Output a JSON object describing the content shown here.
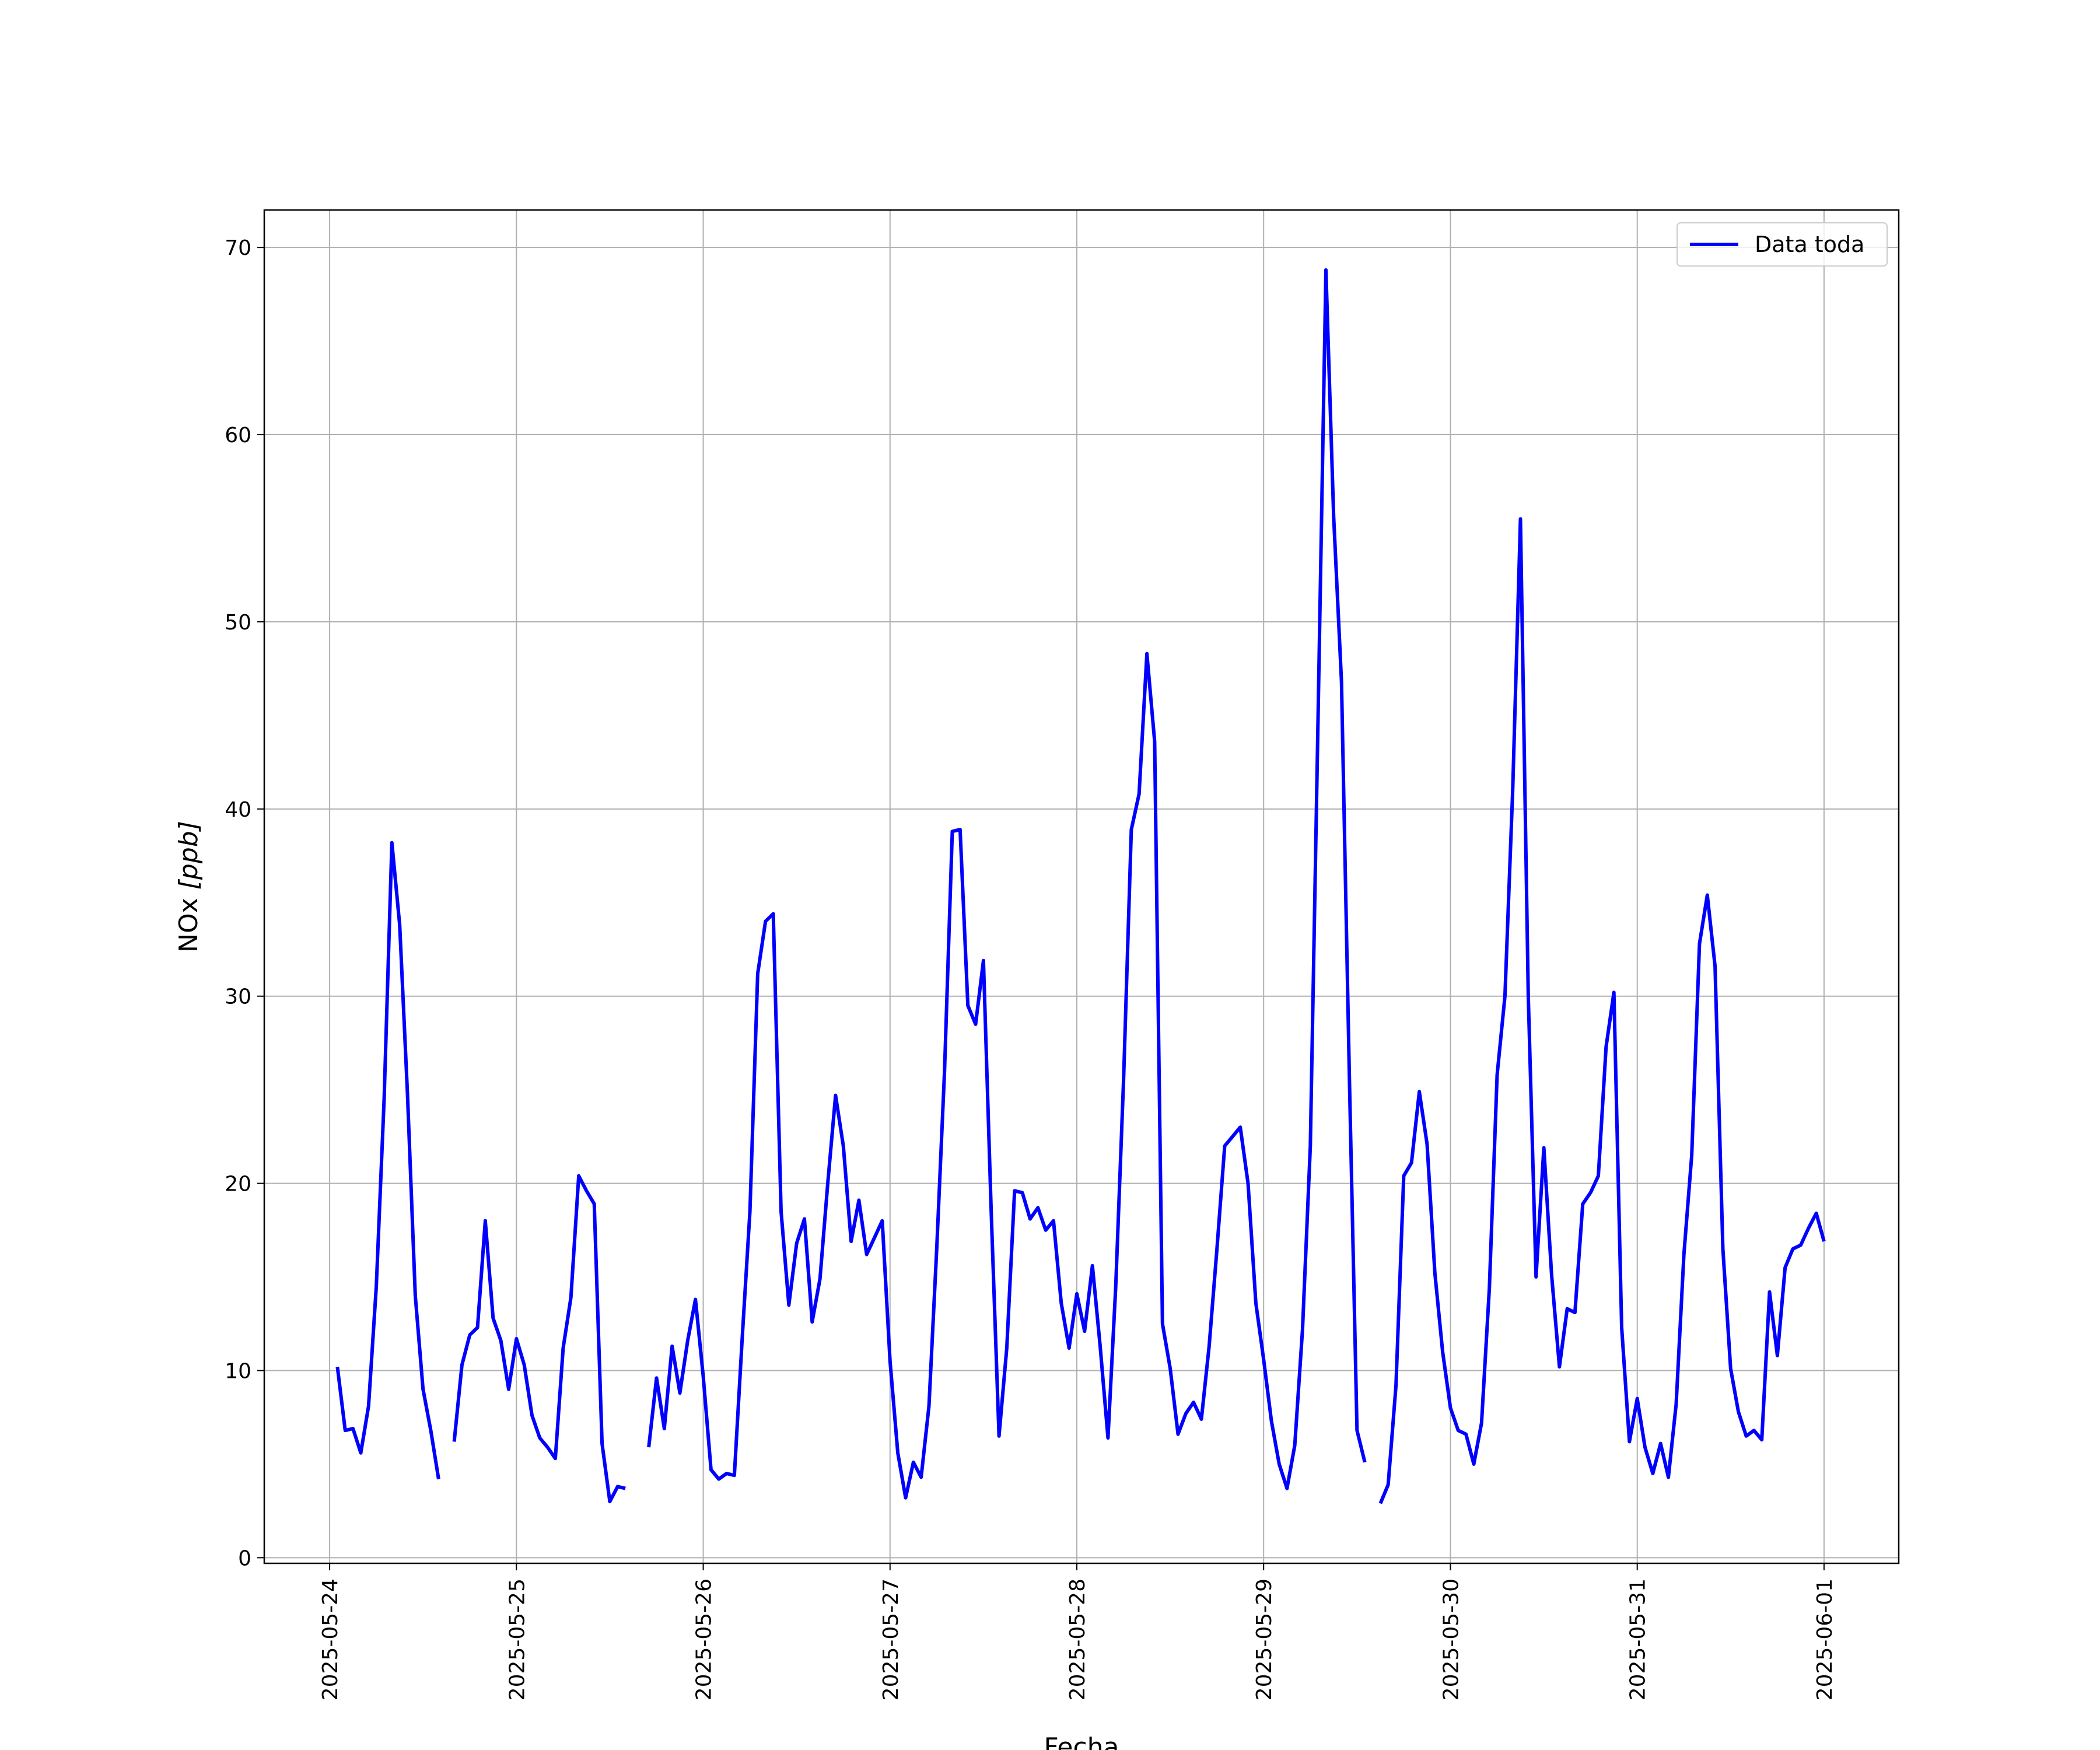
{
  "chart_data": {
    "type": "line",
    "xlabel": "Fecha",
    "ylabel": "NOx [ppb]",
    "ylabel_parts": {
      "base": "NOx ",
      "unit": "[ppb]"
    },
    "ylim": [
      -0.3,
      72
    ],
    "yticks": [
      0,
      10,
      20,
      30,
      40,
      50,
      60,
      70
    ],
    "xlim_days": [
      -0.35,
      8.4
    ],
    "xticks": [
      "2025-05-24",
      "2025-05-25",
      "2025-05-26",
      "2025-05-27",
      "2025-05-28",
      "2025-05-29",
      "2025-05-30",
      "2025-05-31",
      "2025-06-01"
    ],
    "grid": true,
    "legend": {
      "placement": "top-right",
      "entries": [
        "Data toda"
      ]
    },
    "series": [
      {
        "name": "Data toda",
        "color": "#0000ff",
        "segments": [
          [
            [
              "2025-05-24 01:00",
              10.2
            ],
            [
              "2025-05-24 02:00",
              6.8
            ],
            [
              "2025-05-24 03:00",
              6.9
            ],
            [
              "2025-05-24 04:00",
              5.6
            ],
            [
              "2025-05-24 05:00",
              8.1
            ],
            [
              "2025-05-24 06:00",
              14.5
            ],
            [
              "2025-05-24 07:00",
              24.5
            ],
            [
              "2025-05-24 08:00",
              38.2
            ],
            [
              "2025-05-24 09:00",
              33.8
            ],
            [
              "2025-05-24 10:00",
              24.8
            ],
            [
              "2025-05-24 11:00",
              14.0
            ],
            [
              "2025-05-24 12:00",
              9.0
            ],
            [
              "2025-05-24 13:00",
              6.8
            ],
            [
              "2025-05-24 14:00",
              4.2
            ]
          ],
          [
            [
              "2025-05-24 16:00",
              6.2
            ],
            [
              "2025-05-24 17:00",
              10.3
            ],
            [
              "2025-05-24 18:00",
              11.9
            ],
            [
              "2025-05-24 19:00",
              12.3
            ],
            [
              "2025-05-24 20:00",
              18.0
            ],
            [
              "2025-05-24 21:00",
              12.8
            ],
            [
              "2025-05-24 22:00",
              11.6
            ],
            [
              "2025-05-24 23:00",
              9.0
            ],
            [
              "2025-05-25 00:00",
              11.7
            ],
            [
              "2025-05-25 01:00",
              10.3
            ],
            [
              "2025-05-25 02:00",
              7.6
            ],
            [
              "2025-05-25 03:00",
              6.4
            ],
            [
              "2025-05-25 04:00",
              5.9
            ],
            [
              "2025-05-25 05:00",
              5.3
            ],
            [
              "2025-05-25 06:00",
              11.2
            ],
            [
              "2025-05-25 07:00",
              13.9
            ],
            [
              "2025-05-25 08:00",
              20.4
            ],
            [
              "2025-05-25 09:00",
              19.6
            ],
            [
              "2025-05-25 10:00",
              18.9
            ],
            [
              "2025-05-25 11:00",
              6.1
            ],
            [
              "2025-05-25 12:00",
              3.0
            ],
            [
              "2025-05-25 13:00",
              3.8
            ],
            [
              "2025-05-25 14:00",
              3.7
            ]
          ],
          [
            [
              "2025-05-25 17:00",
              5.9
            ],
            [
              "2025-05-25 18:00",
              9.6
            ],
            [
              "2025-05-25 19:00",
              6.9
            ],
            [
              "2025-05-25 20:00",
              11.3
            ],
            [
              "2025-05-25 21:00",
              8.8
            ],
            [
              "2025-05-25 22:00",
              11.6
            ],
            [
              "2025-05-25 23:00",
              13.8
            ],
            [
              "2025-05-26 00:00",
              9.7
            ],
            [
              "2025-05-26 01:00",
              4.7
            ],
            [
              "2025-05-26 02:00",
              4.2
            ],
            [
              "2025-05-26 03:00",
              4.5
            ],
            [
              "2025-05-26 04:00",
              4.4
            ],
            [
              "2025-05-26 05:00",
              11.7
            ],
            [
              "2025-05-26 06:00",
              18.5
            ],
            [
              "2025-05-26 07:00",
              31.2
            ],
            [
              "2025-05-26 08:00",
              34.0
            ],
            [
              "2025-05-26 09:00",
              34.4
            ],
            [
              "2025-05-26 10:00",
              18.5
            ],
            [
              "2025-05-26 11:00",
              13.5
            ],
            [
              "2025-05-26 12:00",
              16.8
            ],
            [
              "2025-05-26 13:00",
              18.1
            ],
            [
              "2025-05-26 14:00",
              12.6
            ],
            [
              "2025-05-26 15:00",
              14.9
            ],
            [
              "2025-05-26 16:00",
              20.0
            ],
            [
              "2025-05-26 17:00",
              24.7
            ],
            [
              "2025-05-26 18:00",
              22.0
            ],
            [
              "2025-05-26 19:00",
              16.9
            ],
            [
              "2025-05-26 20:00",
              19.1
            ],
            [
              "2025-05-26 21:00",
              16.2
            ],
            [
              "2025-05-26 22:00",
              17.1
            ],
            [
              "2025-05-26 23:00",
              18.0
            ],
            [
              "2025-05-27 00:00",
              10.5
            ],
            [
              "2025-05-27 01:00",
              5.6
            ],
            [
              "2025-05-27 02:00",
              3.2
            ],
            [
              "2025-05-27 03:00",
              5.1
            ],
            [
              "2025-05-27 04:00",
              4.3
            ],
            [
              "2025-05-27 05:00",
              8.1
            ],
            [
              "2025-05-27 06:00",
              16.5
            ],
            [
              "2025-05-27 07:00",
              26.0
            ],
            [
              "2025-05-27 08:00",
              38.8
            ],
            [
              "2025-05-27 09:00",
              38.9
            ],
            [
              "2025-05-27 10:00",
              29.5
            ],
            [
              "2025-05-27 11:00",
              28.5
            ],
            [
              "2025-05-27 12:00",
              31.9
            ],
            [
              "2025-05-27 13:00",
              18.5
            ],
            [
              "2025-05-27 14:00",
              6.5
            ],
            [
              "2025-05-27 15:00",
              11.2
            ],
            [
              "2025-05-27 16:00",
              19.6
            ],
            [
              "2025-05-27 17:00",
              19.5
            ],
            [
              "2025-05-27 18:00",
              18.1
            ],
            [
              "2025-05-27 19:00",
              18.7
            ],
            [
              "2025-05-27 20:00",
              17.5
            ],
            [
              "2025-05-27 21:00",
              18.0
            ],
            [
              "2025-05-27 22:00",
              13.6
            ],
            [
              "2025-05-27 23:00",
              11.2
            ],
            [
              "2025-05-28 00:00",
              14.1
            ],
            [
              "2025-05-28 01:00",
              12.1
            ],
            [
              "2025-05-28 02:00",
              15.6
            ],
            [
              "2025-05-28 03:00",
              11.3
            ],
            [
              "2025-05-28 04:00",
              6.4
            ],
            [
              "2025-05-28 05:00",
              14.5
            ],
            [
              "2025-05-28 06:00",
              25.5
            ],
            [
              "2025-05-28 07:00",
              38.9
            ],
            [
              "2025-05-28 08:00",
              40.8
            ],
            [
              "2025-05-28 09:00",
              48.3
            ],
            [
              "2025-05-28 10:00",
              43.6
            ],
            [
              "2025-05-28 11:00",
              12.5
            ],
            [
              "2025-05-28 12:00",
              10.1
            ],
            [
              "2025-05-28 13:00",
              6.6
            ],
            [
              "2025-05-28 14:00",
              7.7
            ],
            [
              "2025-05-28 15:00",
              8.3
            ],
            [
              "2025-05-28 16:00",
              7.4
            ],
            [
              "2025-05-28 17:00",
              11.3
            ],
            [
              "2025-05-28 18:00",
              16.5
            ],
            [
              "2025-05-28 19:00",
              22.0
            ],
            [
              "2025-05-28 20:00",
              22.5
            ],
            [
              "2025-05-28 21:00",
              23.0
            ],
            [
              "2025-05-28 22:00",
              20.0
            ],
            [
              "2025-05-28 23:00",
              13.6
            ],
            [
              "2025-05-29 00:00",
              10.6
            ],
            [
              "2025-05-29 01:00",
              7.3
            ],
            [
              "2025-05-29 02:00",
              5.0
            ],
            [
              "2025-05-29 03:00",
              3.7
            ],
            [
              "2025-05-29 04:00",
              6.0
            ],
            [
              "2025-05-29 05:00",
              12.2
            ],
            [
              "2025-05-29 06:00",
              22.0
            ],
            [
              "2025-05-29 07:00",
              45.0
            ],
            [
              "2025-05-29 08:00",
              68.8
            ],
            [
              "2025-05-29 09:00",
              55.6
            ],
            [
              "2025-05-29 10:00",
              46.8
            ],
            [
              "2025-05-29 11:00",
              26.0
            ],
            [
              "2025-05-29 12:00",
              6.8
            ],
            [
              "2025-05-29 13:00",
              5.1
            ]
          ],
          [
            [
              "2025-05-29 15:00",
              2.9
            ],
            [
              "2025-05-29 16:00",
              3.9
            ],
            [
              "2025-05-29 17:00",
              9.2
            ],
            [
              "2025-05-29 18:00",
              20.4
            ],
            [
              "2025-05-29 19:00",
              21.1
            ],
            [
              "2025-05-29 20:00",
              24.9
            ],
            [
              "2025-05-29 21:00",
              22.1
            ],
            [
              "2025-05-29 22:00",
              15.2
            ],
            [
              "2025-05-29 23:00",
              11.0
            ],
            [
              "2025-05-30 00:00",
              8.0
            ],
            [
              "2025-05-30 01:00",
              6.8
            ],
            [
              "2025-05-30 02:00",
              6.6
            ],
            [
              "2025-05-30 03:00",
              5.0
            ],
            [
              "2025-05-30 04:00",
              7.2
            ],
            [
              "2025-05-30 05:00",
              14.4
            ],
            [
              "2025-05-30 06:00",
              25.8
            ],
            [
              "2025-05-30 07:00",
              30.0
            ],
            [
              "2025-05-30 08:00",
              41.0
            ],
            [
              "2025-05-30 09:00",
              55.5
            ],
            [
              "2025-05-30 10:00",
              30.0
            ],
            [
              "2025-05-30 11:00",
              15.0
            ],
            [
              "2025-05-30 12:00",
              21.9
            ],
            [
              "2025-05-30 13:00",
              15.1
            ],
            [
              "2025-05-30 14:00",
              10.2
            ],
            [
              "2025-05-30 15:00",
              13.3
            ],
            [
              "2025-05-30 16:00",
              13.1
            ],
            [
              "2025-05-30 17:00",
              18.9
            ],
            [
              "2025-05-30 18:00",
              19.5
            ],
            [
              "2025-05-30 19:00",
              20.4
            ],
            [
              "2025-05-30 20:00",
              27.3
            ],
            [
              "2025-05-30 21:00",
              30.2
            ],
            [
              "2025-05-30 22:00",
              12.3
            ],
            [
              "2025-05-30 23:00",
              6.2
            ],
            [
              "2025-05-31 00:00",
              8.5
            ],
            [
              "2025-05-31 01:00",
              5.9
            ],
            [
              "2025-05-31 02:00",
              4.5
            ],
            [
              "2025-05-31 03:00",
              6.1
            ],
            [
              "2025-05-31 04:00",
              4.3
            ],
            [
              "2025-05-31 05:00",
              8.2
            ],
            [
              "2025-05-31 06:00",
              16.2
            ],
            [
              "2025-05-31 07:00",
              21.5
            ],
            [
              "2025-05-31 08:00",
              32.8
            ],
            [
              "2025-05-31 09:00",
              35.4
            ],
            [
              "2025-05-31 10:00",
              31.6
            ],
            [
              "2025-05-31 11:00",
              16.5
            ],
            [
              "2025-05-31 12:00",
              10.1
            ],
            [
              "2025-05-31 13:00",
              7.8
            ],
            [
              "2025-05-31 14:00",
              6.5
            ],
            [
              "2025-05-31 15:00",
              6.8
            ],
            [
              "2025-05-31 16:00",
              6.3
            ],
            [
              "2025-05-31 17:00",
              14.2
            ],
            [
              "2025-05-31 18:00",
              10.8
            ],
            [
              "2025-05-31 19:00",
              15.5
            ],
            [
              "2025-05-31 20:00",
              16.5
            ],
            [
              "2025-05-31 21:00",
              16.7
            ],
            [
              "2025-05-31 22:00",
              17.6
            ],
            [
              "2025-05-31 23:00",
              18.4
            ],
            [
              "2025-06-01 00:00",
              16.9
            ]
          ]
        ]
      }
    ]
  }
}
